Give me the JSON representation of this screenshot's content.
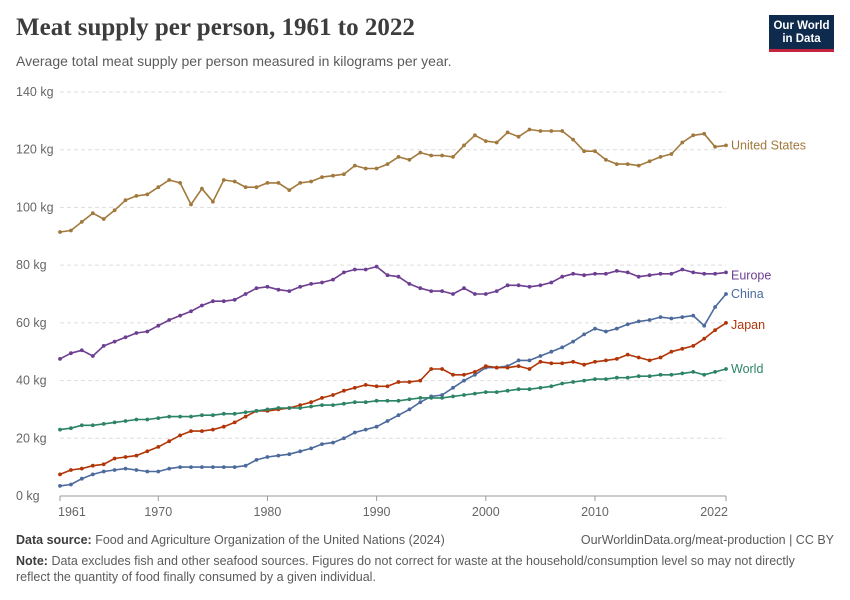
{
  "header": {
    "title": "Meat supply per person, 1961 to 2022",
    "subtitle": "Average total meat supply per person measured in kilograms per year.",
    "logo_line1": "Our World",
    "logo_line2": "in Data"
  },
  "footer": {
    "source_label": "Data source:",
    "source_text": "Food and Agriculture Organization of the United Nations (2024)",
    "url": "OurWorldinData.org/meat-production | CC BY",
    "note_label": "Note:",
    "note_text": "Data excludes fish and other seafood sources. Figures do not correct for waste at the household/consumption level so may not directly reflect the quantity of food finally consumed by a given individual."
  },
  "chart_data": {
    "type": "line",
    "title": "Meat supply per person, 1961 to 2022",
    "ylabel": "",
    "xlabel": "",
    "x_start": 1961,
    "x_end": 2022,
    "ylim": [
      0,
      140
    ],
    "y_ticks": [
      0,
      20,
      40,
      60,
      80,
      100,
      120,
      140
    ],
    "y_tick_labels": [
      "0 kg",
      "20 kg",
      "40 kg",
      "60 kg",
      "80 kg",
      "100 kg",
      "120 kg",
      "140 kg"
    ],
    "x_ticks": [
      1961,
      1970,
      1980,
      1990,
      2000,
      2010,
      2022
    ],
    "x_tick_labels": [
      "1961",
      "1970",
      "1980",
      "1990",
      "2000",
      "2010",
      "2022"
    ],
    "grid": "horizontal dashed",
    "legend": "labels at line ends (right)",
    "series": [
      {
        "name": "United States",
        "color": "#a2793d",
        "values": [
          91.5,
          92,
          95,
          98,
          96,
          99,
          102.5,
          104,
          104.5,
          107,
          109.5,
          108.5,
          101,
          106.5,
          102,
          109.5,
          109,
          107,
          107,
          108.5,
          108.5,
          106,
          108.5,
          109,
          110.5,
          111,
          111.5,
          114.5,
          113.5,
          113.5,
          115,
          117.5,
          116.5,
          119,
          118,
          118,
          117.5,
          121.5,
          125,
          123,
          122.5,
          126,
          124.5,
          127,
          126.5,
          126.5,
          126.5,
          123.5,
          119.5,
          119.5,
          116.5,
          115,
          115,
          114.5,
          116,
          117.5,
          118.5,
          122.5,
          125,
          125.5,
          121,
          121.5
        ]
      },
      {
        "name": "Europe",
        "color": "#6d3e91",
        "values": [
          47.5,
          49.5,
          50.5,
          48.5,
          52,
          53.5,
          55,
          56.5,
          57,
          59,
          61,
          62.5,
          64,
          66,
          67.5,
          67.5,
          68,
          70,
          72,
          72.5,
          71.5,
          71,
          72.5,
          73.5,
          74,
          75,
          77.5,
          78.5,
          78.5,
          79.5,
          76.5,
          76,
          73.5,
          72,
          71,
          71,
          70,
          72,
          70,
          70,
          71,
          73,
          73,
          72.5,
          73,
          74,
          76,
          77,
          76.5,
          77,
          77,
          78,
          77.5,
          76,
          76.5,
          77,
          77,
          78.5,
          77.5,
          77,
          77,
          77.5
        ]
      },
      {
        "name": "China",
        "color": "#4c6a9c",
        "values": [
          3.5,
          4,
          6,
          7.5,
          8.5,
          9,
          9.5,
          9,
          8.5,
          8.5,
          9.5,
          10,
          10,
          10,
          10,
          10,
          10,
          10.5,
          12.5,
          13.5,
          14,
          14.5,
          15.5,
          16.5,
          18,
          18.5,
          20,
          22,
          23,
          24,
          26,
          28,
          30,
          32.5,
          34.5,
          35,
          37.5,
          40,
          42,
          44.5,
          44.5,
          45,
          47,
          47,
          48.5,
          50,
          51.5,
          53.5,
          56,
          58,
          57,
          58,
          59.5,
          60.5,
          61,
          62,
          61.5,
          62,
          62.5,
          59,
          65.5,
          70
        ]
      },
      {
        "name": "Japan",
        "color": "#b13507",
        "values": [
          7.5,
          9,
          9.5,
          10.5,
          11,
          13,
          13.5,
          14,
          15.5,
          17,
          19,
          21,
          22.5,
          22.5,
          23,
          24,
          25.5,
          27.5,
          29.5,
          29.5,
          30,
          30.5,
          31.5,
          32.5,
          34,
          35,
          36.5,
          37.5,
          38.5,
          38,
          38,
          39.5,
          39.5,
          40,
          44,
          44,
          42,
          42,
          43,
          45,
          44.5,
          44.5,
          45,
          44,
          46.5,
          46,
          46,
          46.5,
          45.5,
          46.5,
          47,
          47.5,
          49,
          48,
          47,
          48,
          50,
          51,
          52,
          54.5,
          57.5,
          60
        ]
      },
      {
        "name": "World",
        "color": "#2c8465",
        "values": [
          23,
          23.5,
          24.5,
          24.5,
          25,
          25.5,
          26,
          26.5,
          26.5,
          27,
          27.5,
          27.5,
          27.5,
          28,
          28,
          28.5,
          28.5,
          29,
          29.5,
          30,
          30.5,
          30.5,
          30.5,
          31,
          31.5,
          31.5,
          32,
          32.5,
          32.5,
          33,
          33,
          33,
          33.5,
          34,
          34,
          34,
          34.5,
          35,
          35.5,
          36,
          36,
          36.5,
          37,
          37,
          37.5,
          38,
          39,
          39.5,
          40,
          40.5,
          40.5,
          41,
          41,
          41.5,
          41.5,
          42,
          42,
          42.5,
          43,
          42,
          43,
          44
        ]
      }
    ]
  }
}
